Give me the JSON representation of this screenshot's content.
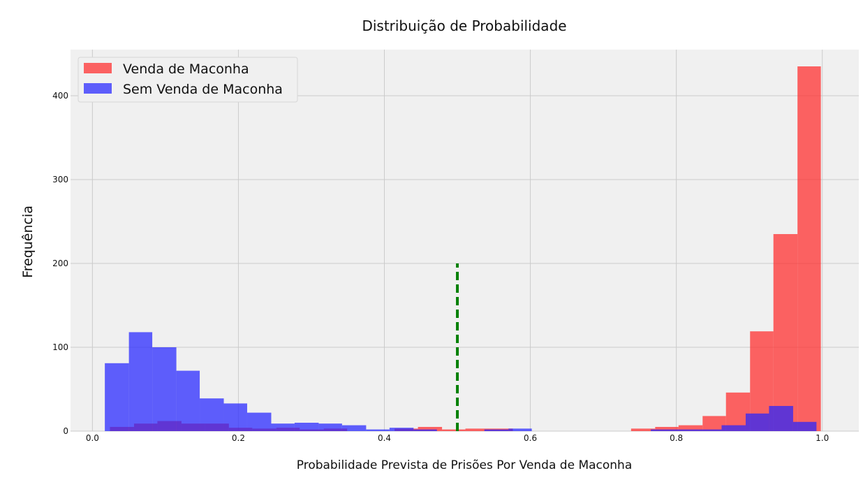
{
  "chart_data": {
    "type": "bar",
    "title": "Distribuição de Probabilidade",
    "xlabel": "Probabilidade Prevista de Prisões Por Venda de Maconha",
    "ylabel": "Frequência",
    "xlim": [
      -0.03,
      1.05
    ],
    "ylim": [
      0,
      455
    ],
    "xticks": [
      0.0,
      0.2,
      0.4,
      0.6,
      0.8,
      1.0
    ],
    "xtick_labels": [
      "0.0",
      "0.2",
      "0.4",
      "0.6",
      "0.8",
      "1.0"
    ],
    "yticks": [
      0,
      100,
      200,
      300,
      400
    ],
    "ytick_labels": [
      "0",
      "100",
      "200",
      "300",
      "400"
    ],
    "grid": true,
    "legend_position": "top-left",
    "threshold_line": {
      "x": 0.5,
      "y_from": 0,
      "y_to": 200,
      "color": "#008000",
      "style": "dashed"
    },
    "series": [
      {
        "name": "Venda de Maconha",
        "color": "#ff2a2a",
        "opacity": 0.72,
        "bins": [
          [
            0.024,
            0.057,
            5
          ],
          [
            0.057,
            0.089,
            9
          ],
          [
            0.089,
            0.122,
            12
          ],
          [
            0.122,
            0.154,
            9
          ],
          [
            0.154,
            0.187,
            9
          ],
          [
            0.187,
            0.219,
            4
          ],
          [
            0.219,
            0.252,
            3
          ],
          [
            0.252,
            0.284,
            4
          ],
          [
            0.284,
            0.317,
            2
          ],
          [
            0.317,
            0.349,
            3
          ],
          [
            0.414,
            0.446,
            3
          ],
          [
            0.446,
            0.479,
            5
          ],
          [
            0.479,
            0.511,
            2
          ],
          [
            0.511,
            0.544,
            3
          ],
          [
            0.544,
            0.576,
            3
          ],
          [
            0.738,
            0.771,
            3
          ],
          [
            0.771,
            0.803,
            5
          ],
          [
            0.803,
            0.836,
            7
          ],
          [
            0.836,
            0.868,
            18
          ],
          [
            0.868,
            0.901,
            46
          ],
          [
            0.901,
            0.933,
            119
          ],
          [
            0.933,
            0.966,
            235
          ],
          [
            0.966,
            0.998,
            435
          ]
        ]
      },
      {
        "name": "Sem Venda de Maconha",
        "color": "#2424ff",
        "opacity": 0.72,
        "bins": [
          [
            0.017,
            0.05,
            81
          ],
          [
            0.05,
            0.082,
            118
          ],
          [
            0.082,
            0.115,
            100
          ],
          [
            0.115,
            0.147,
            72
          ],
          [
            0.147,
            0.18,
            39
          ],
          [
            0.18,
            0.212,
            33
          ],
          [
            0.212,
            0.245,
            22
          ],
          [
            0.245,
            0.277,
            9
          ],
          [
            0.277,
            0.31,
            10
          ],
          [
            0.31,
            0.342,
            9
          ],
          [
            0.342,
            0.375,
            7
          ],
          [
            0.375,
            0.407,
            2
          ],
          [
            0.407,
            0.44,
            4
          ],
          [
            0.44,
            0.472,
            2
          ],
          [
            0.537,
            0.57,
            2
          ],
          [
            0.57,
            0.602,
            3
          ],
          [
            0.765,
            0.797,
            2
          ],
          [
            0.797,
            0.83,
            2
          ],
          [
            0.83,
            0.862,
            2
          ],
          [
            0.862,
            0.895,
            7
          ],
          [
            0.895,
            0.927,
            21
          ],
          [
            0.927,
            0.96,
            30
          ],
          [
            0.96,
            0.992,
            11
          ]
        ]
      }
    ]
  }
}
